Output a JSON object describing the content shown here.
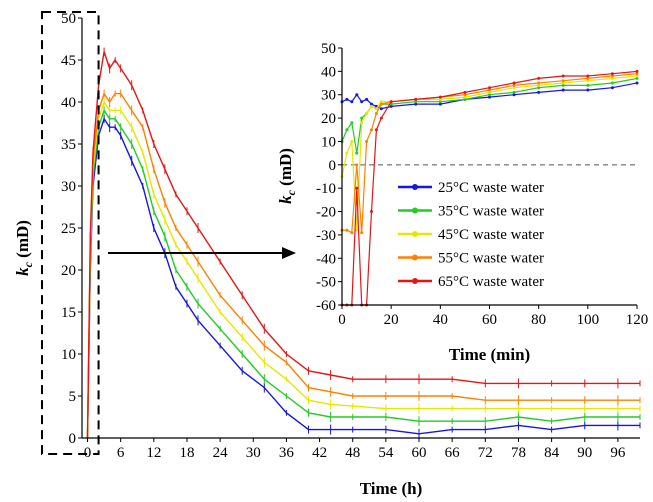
{
  "chart_data": [
    {
      "type": "line",
      "title": "",
      "xlabel": "Time (h)",
      "ylabel": "k_c (mD)",
      "ylabel_main": "k",
      "ylabel_sub": "c",
      "ylabel_unit": " (mD)",
      "xlim": [
        -1,
        100
      ],
      "ylim": [
        0,
        50
      ],
      "xticks": [
        0,
        6,
        12,
        18,
        24,
        30,
        36,
        42,
        48,
        54,
        60,
        66,
        72,
        78,
        84,
        90,
        96
      ],
      "yticks": [
        0,
        5,
        10,
        15,
        20,
        25,
        30,
        35,
        40,
        45,
        50
      ],
      "grid": false,
      "legend": "none",
      "error_bars": true,
      "series": [
        {
          "name": "25°C waste water",
          "color": "#1515e6",
          "x": [
            0,
            0.5,
            1,
            2,
            3,
            4,
            5,
            6,
            8,
            10,
            12,
            14,
            16,
            18,
            20,
            24,
            28,
            32,
            36,
            40,
            44,
            48,
            54,
            60,
            66,
            72,
            78,
            84,
            90,
            96,
            100
          ],
          "y": [
            0,
            20,
            30,
            36,
            38,
            37,
            37,
            36,
            33,
            30,
            25,
            22,
            18,
            16,
            14,
            11,
            8,
            6,
            3,
            1,
            1,
            1,
            1,
            0.5,
            1,
            1,
            1.5,
            1,
            1.5,
            1.5,
            1.5
          ]
        },
        {
          "name": "35°C waste water",
          "color": "#22cc22",
          "x": [
            0,
            0.5,
            1,
            2,
            3,
            4,
            5,
            6,
            8,
            10,
            12,
            14,
            16,
            18,
            20,
            24,
            28,
            32,
            36,
            40,
            44,
            48,
            54,
            60,
            66,
            72,
            78,
            84,
            90,
            96,
            100
          ],
          "y": [
            0,
            21,
            31,
            37,
            39,
            38,
            38,
            37,
            35,
            32,
            27,
            24,
            20,
            18,
            16,
            13,
            10,
            7,
            5,
            3,
            2.5,
            2.5,
            2.5,
            2,
            2,
            2,
            2.5,
            2,
            2.5,
            2.5,
            2.5
          ]
        },
        {
          "name": "45°C waste water",
          "color": "#e6e600",
          "x": [
            0,
            0.5,
            1,
            2,
            3,
            4,
            5,
            6,
            8,
            10,
            12,
            14,
            16,
            18,
            20,
            24,
            28,
            32,
            36,
            40,
            44,
            48,
            54,
            60,
            66,
            72,
            78,
            84,
            90,
            96,
            100
          ],
          "y": [
            0,
            22,
            32,
            38,
            40,
            39,
            39,
            39,
            37,
            34,
            29,
            26,
            23,
            21,
            19,
            15,
            12,
            9,
            7,
            4.5,
            4,
            3.8,
            3.5,
            3.5,
            3.5,
            3.5,
            3.5,
            3.5,
            3.5,
            3.5,
            3.5
          ]
        },
        {
          "name": "55°C waste water",
          "color": "#ff8000",
          "x": [
            0,
            0.5,
            1,
            2,
            3,
            4,
            5,
            6,
            8,
            10,
            12,
            14,
            16,
            18,
            20,
            24,
            28,
            32,
            36,
            40,
            44,
            48,
            54,
            60,
            66,
            72,
            78,
            84,
            90,
            96,
            100
          ],
          "y": [
            0,
            23,
            33,
            39,
            41,
            40,
            41,
            41,
            39,
            37,
            32,
            28,
            25,
            23,
            21,
            17,
            14,
            11,
            9,
            6,
            5.5,
            5,
            5,
            5,
            5,
            4.5,
            4.5,
            4.5,
            4.5,
            4.5,
            4.5
          ]
        },
        {
          "name": "65°C waste water",
          "color": "#e61515",
          "x": [
            0,
            0.5,
            1,
            2,
            3,
            4,
            5,
            6,
            8,
            10,
            12,
            14,
            16,
            18,
            20,
            24,
            28,
            32,
            36,
            40,
            44,
            48,
            54,
            60,
            66,
            72,
            78,
            84,
            90,
            96,
            100
          ],
          "y": [
            0,
            24,
            34,
            42,
            46,
            44,
            45,
            44,
            42,
            39,
            35,
            32,
            29,
            27,
            25,
            21,
            17,
            13,
            10,
            8,
            7.5,
            7,
            7,
            7,
            7,
            6.5,
            6.5,
            6.5,
            6.5,
            6.5,
            6.5
          ]
        }
      ]
    },
    {
      "type": "line",
      "title": "",
      "xlabel": "Time (min)",
      "ylabel": "k_c (mD)",
      "ylabel_main": "k",
      "ylabel_sub": "c",
      "ylabel_unit": " (mD)",
      "xlim": [
        0,
        120
      ],
      "ylim": [
        -60,
        50
      ],
      "xticks": [
        0,
        20,
        40,
        60,
        80,
        100,
        120
      ],
      "yticks": [
        -60,
        -50,
        -40,
        -30,
        -20,
        -10,
        0,
        10,
        20,
        30,
        40,
        50
      ],
      "grid": false,
      "zero_line": true,
      "legend": "lower-right",
      "series": [
        {
          "name": "25°C waste water",
          "color": "#1515e6",
          "x": [
            0,
            2,
            4,
            6,
            8,
            10,
            12,
            14,
            16,
            20,
            30,
            40,
            50,
            60,
            70,
            80,
            90,
            100,
            110,
            120
          ],
          "y": [
            27,
            28,
            27,
            30,
            27,
            28,
            26,
            25,
            24,
            25,
            26,
            26,
            28,
            29,
            30,
            31,
            32,
            32,
            33,
            35
          ]
        },
        {
          "name": "35°C waste water",
          "color": "#22cc22",
          "x": [
            0,
            2,
            4,
            6,
            8,
            10,
            12,
            14,
            16,
            20,
            30,
            40,
            50,
            60,
            70,
            80,
            90,
            100,
            110,
            120
          ],
          "y": [
            10,
            15,
            18,
            5,
            20,
            22,
            25,
            24,
            26,
            26,
            27,
            27,
            28,
            30,
            31,
            33,
            34,
            34,
            35,
            37
          ]
        },
        {
          "name": "45°C waste water",
          "color": "#e6e600",
          "x": [
            0,
            2,
            4,
            6,
            8,
            10,
            12,
            14,
            16,
            20,
            30,
            40,
            50,
            60,
            70,
            80,
            90,
            100,
            110,
            120
          ],
          "y": [
            -5,
            5,
            10,
            -28,
            18,
            22,
            25,
            24,
            27,
            27,
            28,
            28,
            29,
            31,
            33,
            34,
            35,
            36,
            37,
            38
          ]
        },
        {
          "name": "55°C waste water",
          "color": "#ff8000",
          "x": [
            0,
            2,
            4,
            6,
            8,
            10,
            12,
            14,
            16,
            20,
            30,
            40,
            50,
            60,
            70,
            80,
            90,
            100,
            110,
            120
          ],
          "y": [
            -28,
            -28,
            -29,
            0,
            -29,
            10,
            15,
            22,
            26,
            27,
            28,
            29,
            30,
            32,
            34,
            35,
            36,
            37,
            38,
            39
          ]
        },
        {
          "name": "65°C waste water",
          "color": "#e61515",
          "x": [
            0,
            2,
            4,
            6,
            8,
            10,
            12,
            14,
            16,
            20,
            30,
            40,
            50,
            60,
            70,
            80,
            90,
            100,
            110,
            120
          ],
          "y": [
            -60,
            -60,
            -60,
            -10,
            -60,
            -60,
            -20,
            15,
            20,
            27,
            28,
            29,
            31,
            33,
            35,
            37,
            38,
            38,
            39,
            40
          ]
        }
      ]
    }
  ]
}
